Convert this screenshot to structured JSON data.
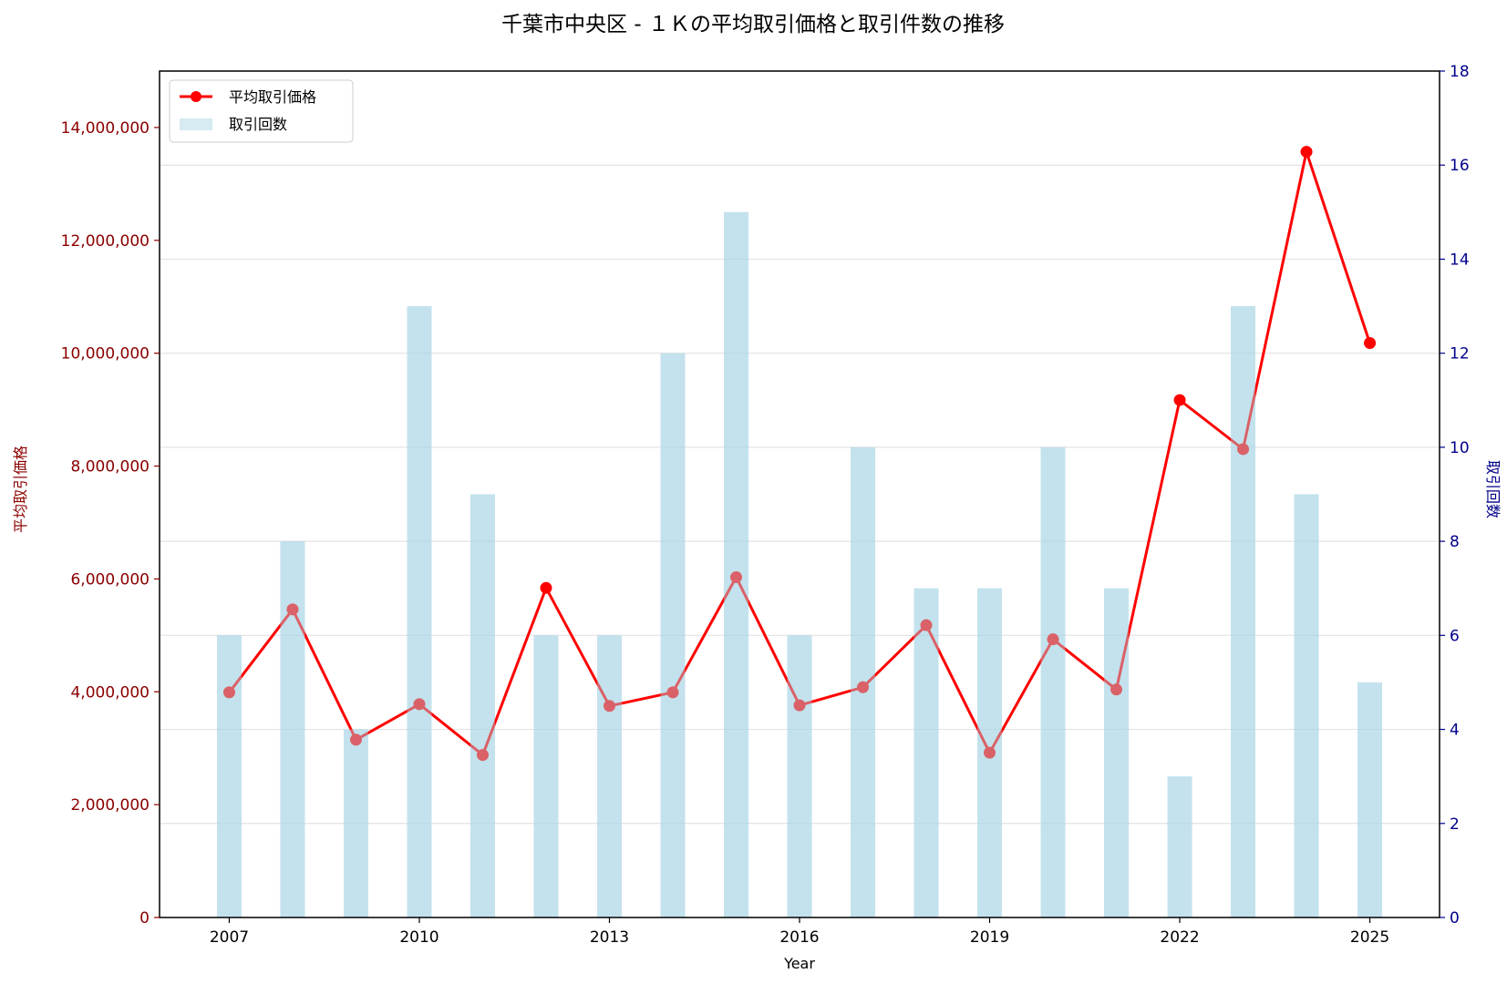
{
  "chart_data": {
    "type": "bar+line",
    "title": "千葉市中央区 - １Ｋの平均取引価格と取引件数の推移",
    "xlabel": "Year",
    "ylabel_left": "平均取引価格",
    "ylabel_right": "取引回数",
    "x": [
      2007,
      2008,
      2009,
      2010,
      2011,
      2012,
      2013,
      2014,
      2015,
      2016,
      2017,
      2018,
      2019,
      2020,
      2021,
      2022,
      2023,
      2024,
      2025
    ],
    "x_ticks": [
      "2007",
      "2010",
      "2013",
      "2016",
      "2019",
      "2022",
      "2025"
    ],
    "xlim": [
      2005.9,
      2026.1
    ],
    "ylim_left": [
      0,
      15000000
    ],
    "ylim_right": [
      0,
      18
    ],
    "y_ticks_left": [
      "0",
      "2,000,000",
      "4,000,000",
      "6,000,000",
      "8,000,000",
      "10,000,000",
      "12,000,000",
      "14,000,000"
    ],
    "y_ticks_right": [
      "0",
      "2",
      "4",
      "6",
      "8",
      "10",
      "12",
      "14",
      "16",
      "18"
    ],
    "grid": true,
    "legend_position": "top-left",
    "series": [
      {
        "name": "平均取引価格",
        "kind": "line",
        "axis": "left",
        "color": "#ff0000",
        "values": [
          3990000,
          5460000,
          3150000,
          3780000,
          2880000,
          5840000,
          3750000,
          3990000,
          6030000,
          3760000,
          4080000,
          5180000,
          2920000,
          4930000,
          4040000,
          9170000,
          8300000,
          13570000,
          10180000
        ]
      },
      {
        "name": "取引回数",
        "kind": "bar",
        "axis": "right",
        "color": "#add8e6",
        "values": [
          6,
          8,
          4,
          13,
          9,
          6,
          6,
          12,
          15,
          6,
          10,
          7,
          7,
          10,
          7,
          3,
          13,
          9,
          5
        ]
      }
    ],
    "colors": {
      "left_axis": "#8b0000",
      "right_axis": "#00008b"
    }
  }
}
